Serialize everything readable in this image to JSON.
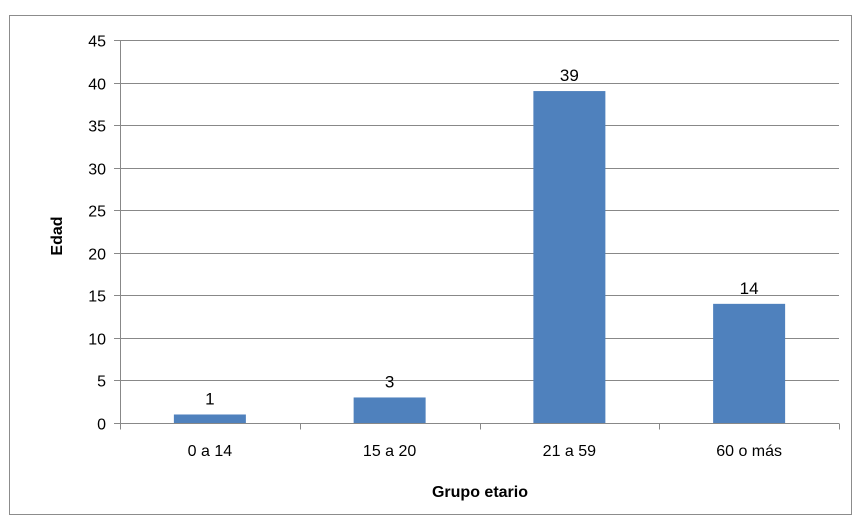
{
  "chart_data": {
    "type": "bar",
    "title": "",
    "xlabel": "Grupo etario",
    "ylabel": "Edad",
    "categories": [
      "0 a 14",
      "15 a 20",
      "21 a 59",
      "60 o más"
    ],
    "values": [
      1,
      3,
      39,
      14
    ],
    "data_labels": [
      "1",
      "3",
      "39",
      "14"
    ],
    "ylim": [
      0,
      45
    ],
    "yticks": [
      0,
      5,
      10,
      15,
      20,
      25,
      30,
      35,
      40,
      45
    ],
    "grid": true,
    "legend": "none",
    "colors": {
      "bar": "#4f81bd",
      "grid": "#888888",
      "axis": "#888888",
      "frame": "#8c8c8c"
    }
  }
}
